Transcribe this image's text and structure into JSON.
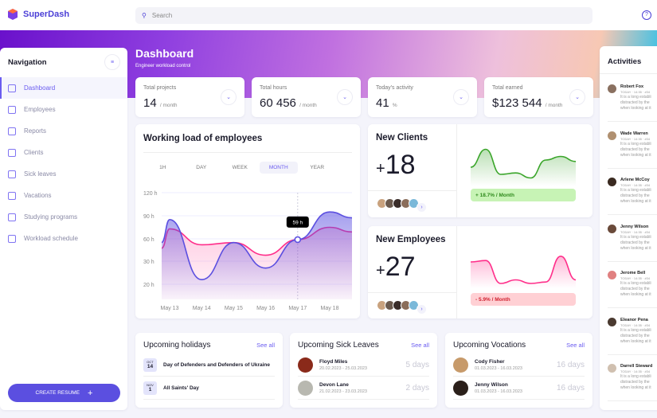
{
  "app": {
    "name": "SuperDash"
  },
  "search": {
    "placeholder": "Search"
  },
  "header": {
    "help_icon": "help-circle-icon"
  },
  "nav": {
    "title": "Navigation",
    "items": [
      {
        "label": "Dashboard",
        "icon": "grid-icon",
        "active": true
      },
      {
        "label": "Employees",
        "icon": "users-icon"
      },
      {
        "label": "Reports",
        "icon": "document-icon"
      },
      {
        "label": "Clients",
        "icon": "briefcase-icon"
      },
      {
        "label": "Sick leaves",
        "icon": "sick-face-icon"
      },
      {
        "label": "Vacations",
        "icon": "palm-icon"
      },
      {
        "label": "Studying programs",
        "icon": "book-icon"
      },
      {
        "label": "Workload schedule",
        "icon": "calendar-icon"
      }
    ],
    "create_button": "CREATE RESUME"
  },
  "page": {
    "title": "Dashboard",
    "subtitle": "Engineer workload control"
  },
  "stats": [
    {
      "label": "Total projects",
      "value": "14",
      "unit": "/ month"
    },
    {
      "label": "Total hours",
      "value": "60 456",
      "unit": "/ month"
    },
    {
      "label": "Today's activity",
      "value": "41",
      "unit": "%"
    },
    {
      "label": "Total earned",
      "value": "$123 544",
      "unit": "/ month"
    }
  ],
  "workload": {
    "title": "Working load of employees",
    "tabs": [
      "1H",
      "DAY",
      "WEEK",
      "MONTH",
      "YEAR"
    ],
    "active_tab": "MONTH",
    "tooltip": "59 h"
  },
  "chart_data": {
    "type": "area",
    "categories": [
      "May 13",
      "May 14",
      "May 15",
      "May 16",
      "May 17",
      "May 18"
    ],
    "y_ticks": [
      "120 h",
      "90 h",
      "60 h",
      "30 h",
      "20 h"
    ],
    "y_tick_values": [
      120,
      90,
      60,
      30,
      20
    ],
    "series": [
      {
        "values": [
          85,
          22,
          55,
          27,
          59,
          95
        ],
        "color": "#5b4fe0"
      },
      {
        "values": [
          73,
          52,
          55,
          38,
          59,
          75
        ],
        "color": "#ff2e8a"
      }
    ],
    "highlight": {
      "category": "May 17",
      "value": 59
    },
    "grid": true
  },
  "new_clients": {
    "title": "New Clients",
    "value": "18",
    "sign": "+",
    "change": "+ 18.7% / Month",
    "trend": [
      60,
      85,
      50,
      52,
      45,
      70,
      75,
      68
    ]
  },
  "new_employees": {
    "title": "New Employees",
    "value": "27",
    "sign": "+",
    "change": "- 5.9% / Month",
    "trend": [
      70,
      72,
      40,
      45,
      40,
      42,
      78,
      45
    ]
  },
  "holidays": {
    "title": "Upcoming holidays",
    "see_all": "See all",
    "items": [
      {
        "month": "OCT",
        "day": "14",
        "name": "Day of Defenders and Defenders of Ukraine"
      },
      {
        "month": "NOV",
        "day": "1",
        "name": "All Saints' Day"
      }
    ]
  },
  "sick": {
    "title": "Upcoming Sick Leaves",
    "see_all": "See all",
    "items": [
      {
        "name": "Floyd Miles",
        "dates": "20.02.2023 - 25.03.2023",
        "days": "5 days"
      },
      {
        "name": "Devon Lane",
        "dates": "21.02.2023 - 23.03.2023",
        "days": "2 days"
      }
    ]
  },
  "vacations": {
    "title": "Upcoming Vocations",
    "see_all": "See all",
    "items": [
      {
        "name": "Cody Fisher",
        "dates": "01.03.2023 - 16.03.2023",
        "days": "16 days"
      },
      {
        "name": "Jenny Wilson",
        "dates": "01.03.2023 - 16.03.2023",
        "days": "16 days"
      }
    ]
  },
  "activities": {
    "title": "Activities",
    "items": [
      {
        "name": "Robert Fox",
        "meta": "TODAY · 14:35 · #34",
        "text": "It is a long establi distracted by the when looking at it"
      },
      {
        "name": "Wade Warren",
        "meta": "TODAY · 14:35 · #34",
        "text": "It is a long establi distracted by the when looking at it"
      },
      {
        "name": "Arlene McCoy",
        "meta": "TODAY · 14:35 · #34",
        "text": "It is a long establi distracted by the when looking at it"
      },
      {
        "name": "Jenny Wilson",
        "meta": "TODAY · 14:35 · #34",
        "text": "It is a long establi distracted by the when looking at it"
      },
      {
        "name": "Jerome Bell",
        "meta": "TODAY · 14:35 · #34",
        "text": "It is a long establi distracted by the when looking at it"
      },
      {
        "name": "Eleanor Pena",
        "meta": "TODAY · 14:35 · #34",
        "text": "It is a long establi distracted by the when looking at it"
      },
      {
        "name": "Darrell Steward",
        "meta": "TODAY · 14:35 · #34",
        "text": "It is a long establi distracted by the when looking at it"
      }
    ]
  },
  "colors": {
    "accent": "#6a5cf0",
    "positive": "#3aa52a",
    "negative": "#e0245e"
  }
}
